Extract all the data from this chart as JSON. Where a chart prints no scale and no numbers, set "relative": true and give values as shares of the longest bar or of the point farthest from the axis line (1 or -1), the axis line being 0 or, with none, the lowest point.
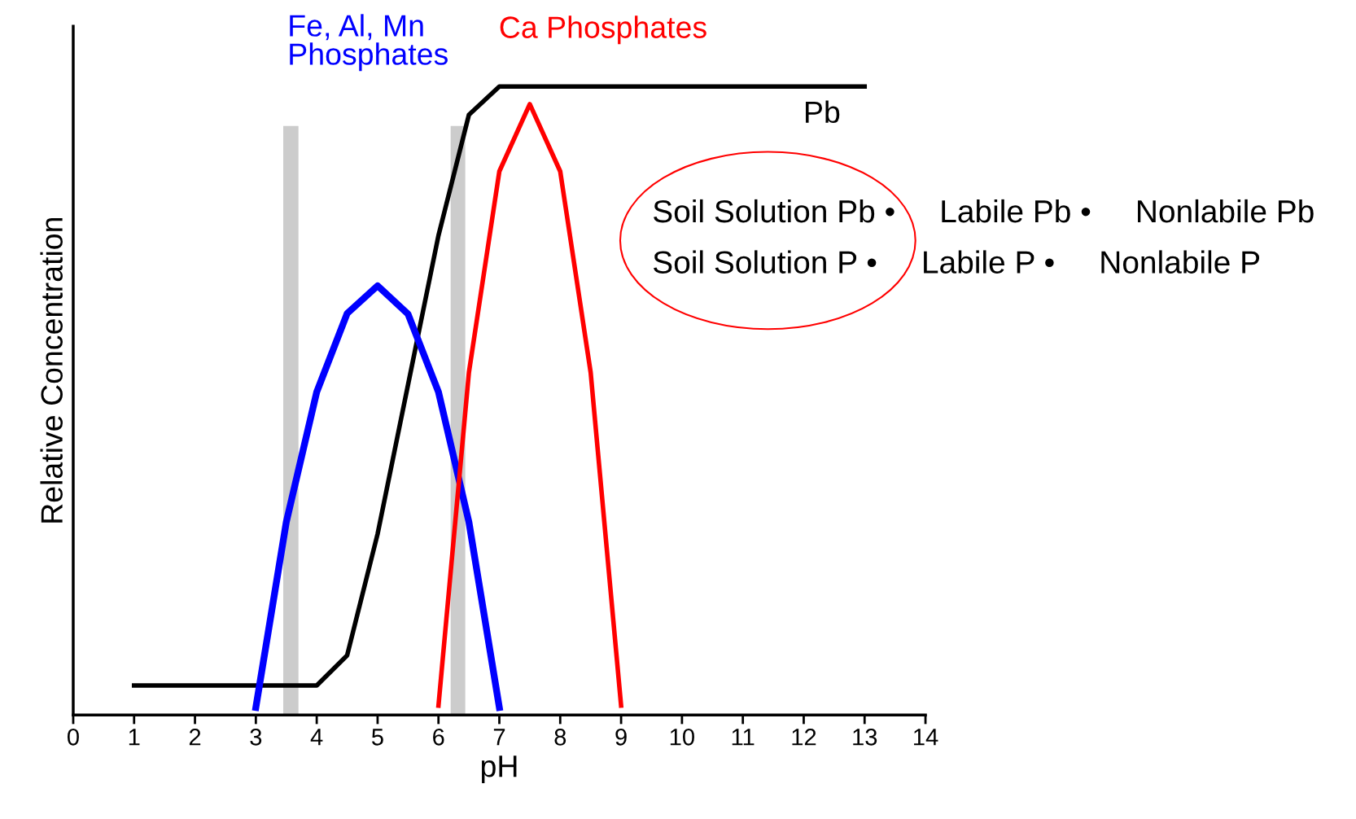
{
  "chart_data": {
    "type": "line",
    "relative": true,
    "xlabel": "pH",
    "ylabel": "Relative Concentration",
    "xlim": [
      0,
      14
    ],
    "xticks": [
      0,
      1,
      2,
      3,
      4,
      5,
      6,
      7,
      8,
      9,
      10,
      11,
      12,
      13,
      14
    ],
    "grid": false,
    "marker": "none",
    "line_style": "solid",
    "series": [
      {
        "name": "Pb",
        "color": "#000000",
        "x": [
          1,
          4,
          4.5,
          5,
          6,
          6.5,
          7,
          13
        ],
        "values": [
          0.047,
          0.047,
          0.095,
          0.288,
          0.763,
          0.955,
          1,
          1
        ]
      },
      {
        "name": "Fe, Al, Mn\nPhosphates",
        "color": "#0000ff",
        "x": [
          3,
          3.5,
          4,
          4.5,
          5,
          5.5,
          6,
          6.5,
          7
        ],
        "values": [
          0.012,
          0.307,
          0.514,
          0.639,
          0.683,
          0.638,
          0.514,
          0.307,
          0.012
        ]
      },
      {
        "name": "Ca Phosphates",
        "color": "#ff0000",
        "x": [
          6,
          6.5,
          7,
          7.5,
          8,
          8.5,
          9
        ],
        "values": [
          0.015,
          0.545,
          0.865,
          0.972,
          0.865,
          0.545,
          0.015
        ]
      }
    ],
    "bands": [
      {
        "axis": "x",
        "from": 3.45,
        "to": 3.7,
        "color": "#cccccc"
      },
      {
        "axis": "x",
        "from": 6.2,
        "to": 6.44,
        "color": "#cccccc"
      }
    ],
    "annotations": [
      "Soil Solution Pb •     Labile Pb •     Nonlabile Pb",
      "Soil Solution P •     Labile P •     Nonlabile P"
    ]
  }
}
